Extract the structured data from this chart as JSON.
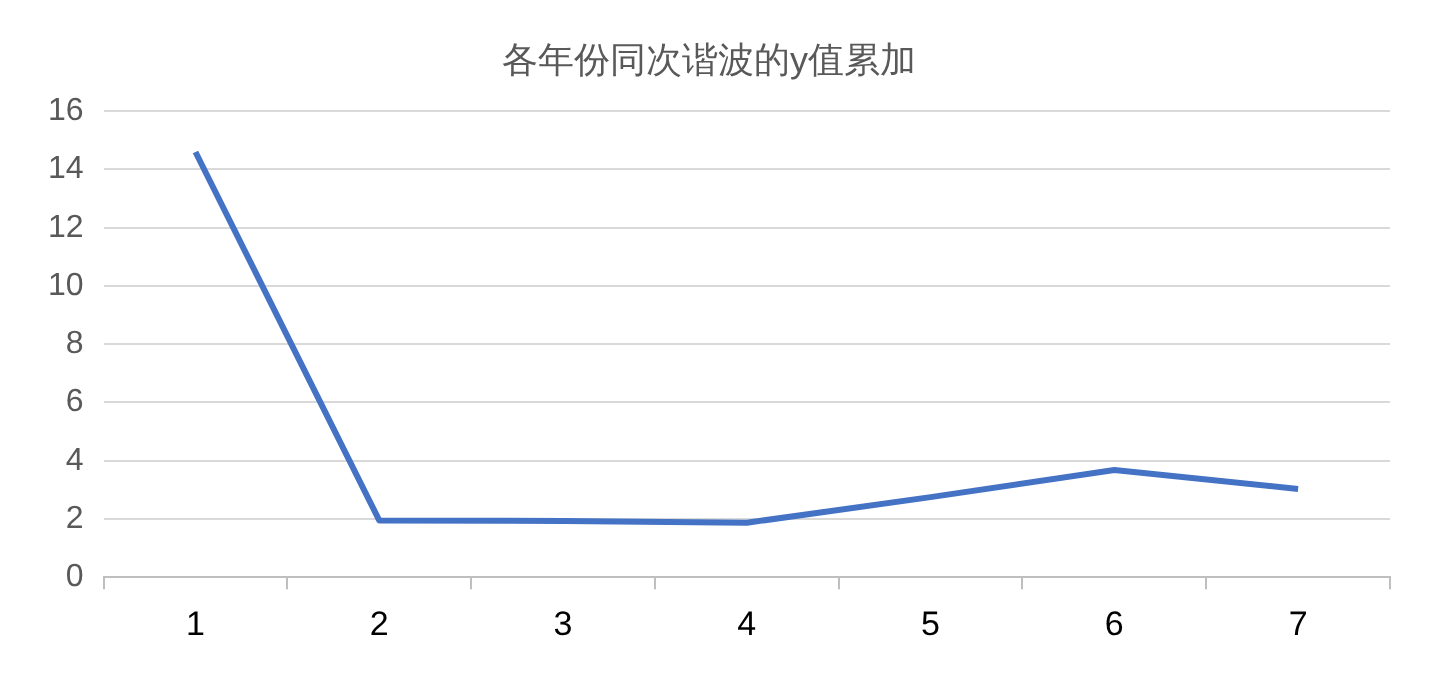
{
  "chart_data": {
    "type": "line",
    "title": "各年份同次谐波的y值累加",
    "categories": [
      "1",
      "2",
      "3",
      "4",
      "5",
      "6",
      "7"
    ],
    "series": [
      {
        "color": "#4472c4",
        "values": [
          14.6,
          1.95,
          1.93,
          1.87,
          2.75,
          3.68,
          3.03
        ]
      }
    ],
    "ylim": [
      0,
      16
    ],
    "yticks": [
      0,
      2,
      4,
      6,
      8,
      10,
      12,
      14,
      16
    ],
    "grid": "y",
    "legend": false,
    "marker": "none",
    "line_style": "solid"
  }
}
